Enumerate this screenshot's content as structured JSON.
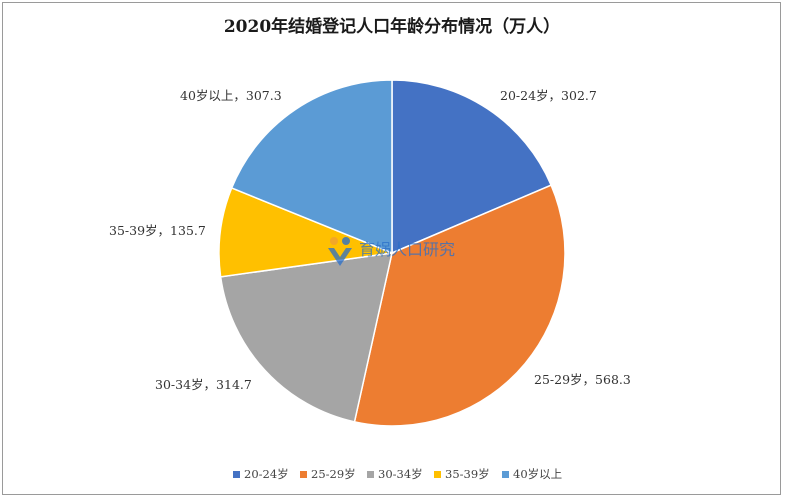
{
  "chart_data": {
    "type": "pie",
    "title": "2020年结婚登记人口年龄分布情况（万人）",
    "label_separator": "，",
    "slices": [
      {
        "name": "20-24岁",
        "value": 302.7,
        "value_text": "302.7",
        "color": "#4472c4"
      },
      {
        "name": "25-29岁",
        "value": 568.3,
        "value_text": "568.3",
        "color": "#ed7d31"
      },
      {
        "name": "30-34岁",
        "value": 314.7,
        "value_text": "314.7",
        "color": "#a5a5a5"
      },
      {
        "name": "35-39岁",
        "value": 135.7,
        "value_text": "135.7",
        "color": "#ffc000"
      },
      {
        "name": "40岁以上",
        "value": 307.3,
        "value_text": "307.3",
        "color": "#5b9bd5"
      }
    ],
    "start": "12 o'clock",
    "direction": "clockwise",
    "legend_position": "bottom"
  },
  "watermark": {
    "text": "育娲人口研究",
    "icon": "yuwa-logo-icon"
  }
}
